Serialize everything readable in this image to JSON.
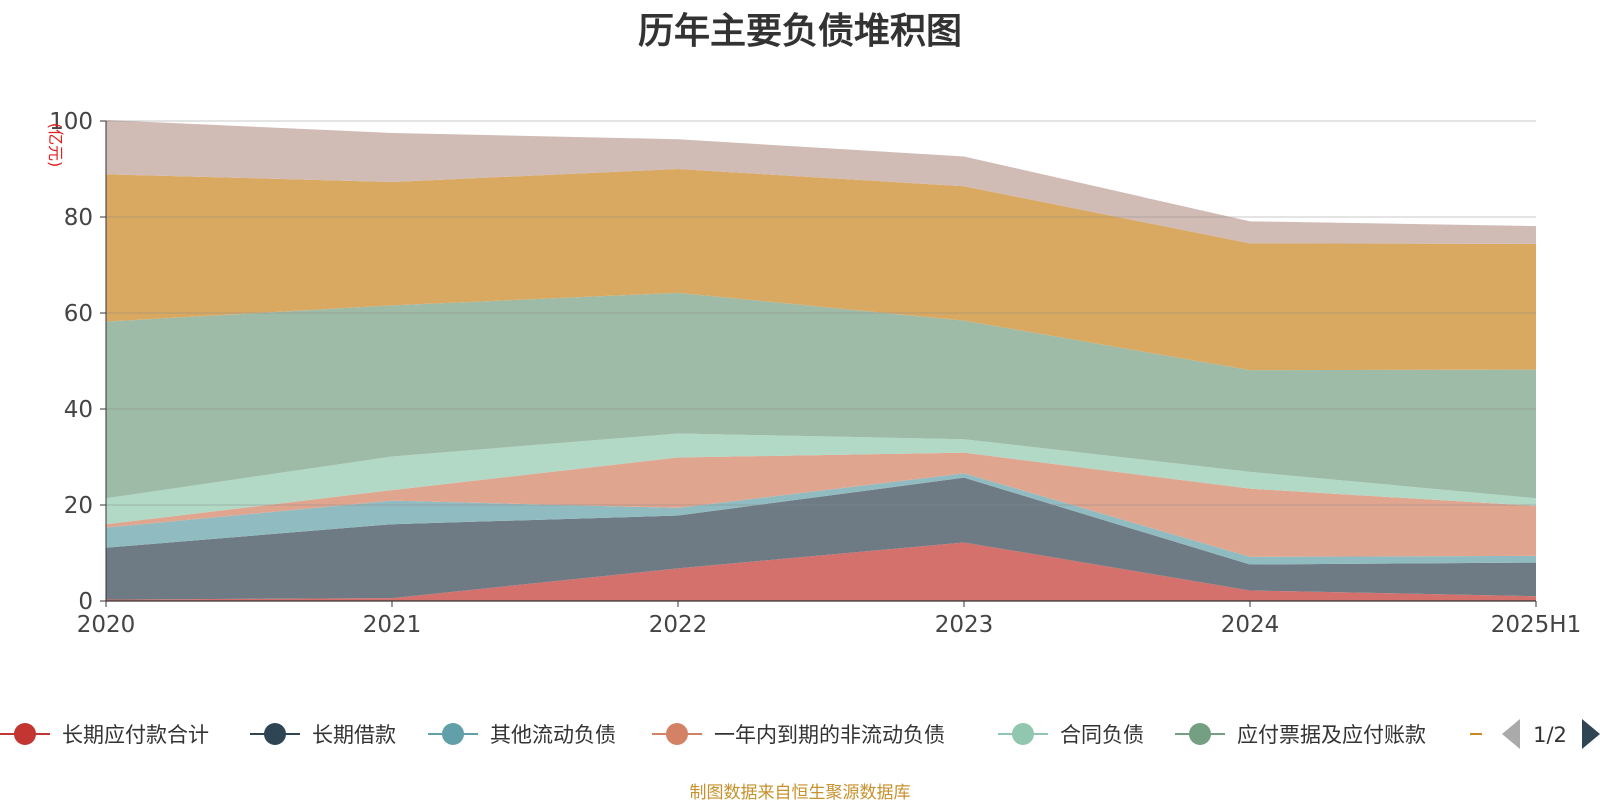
{
  "title": "历年主要负债堆积图",
  "source_note": "制图数据来自恒生聚源数据库",
  "legend_page": "1/2",
  "chart_data": {
    "type": "area",
    "stacked": true,
    "title": "历年主要负债堆积图",
    "unit": "(亿元)",
    "categories": [
      "2020",
      "2021",
      "2022",
      "2023",
      "2024",
      "2025H1"
    ],
    "ylim": [
      0,
      100
    ],
    "yticks": [
      0,
      20,
      40,
      60,
      80,
      100
    ],
    "grid": true,
    "legend_position": "bottom",
    "series": [
      {
        "name": "长期应付款合计",
        "color": "#c23531",
        "fill": "#d4716d",
        "values": [
          0.3,
          0.6,
          6.8,
          12.2,
          2.2,
          1.0
        ]
      },
      {
        "name": "长期借款",
        "color": "#2f4554",
        "fill": "#6e7b85",
        "values": [
          10.8,
          15.4,
          11.0,
          13.5,
          5.4,
          7.0
        ]
      },
      {
        "name": "其他流动负债",
        "color": "#61a0a8",
        "fill": "#90bcc1",
        "values": [
          4.2,
          4.9,
          1.6,
          0.9,
          1.6,
          1.4
        ]
      },
      {
        "name": "一年内到期的非流动负债",
        "color": "#d48265",
        "fill": "#e0a58f",
        "values": [
          0.7,
          2.2,
          10.5,
          4.3,
          14.2,
          10.4
        ]
      },
      {
        "name": "合同负债",
        "color": "#91c7ae",
        "fill": "#b2d8c6",
        "values": [
          5.4,
          7.0,
          5.0,
          2.8,
          3.5,
          1.6
        ]
      },
      {
        "name": "应付票据及应付账款",
        "color": "#749f83",
        "fill": "#9ebba8",
        "values": [
          36.8,
          31.5,
          29.3,
          24.7,
          21.2,
          26.8
        ]
      },
      {
        "name": "",
        "color": "#ca8622",
        "fill": "#d9a962",
        "values": [
          30.7,
          25.7,
          25.8,
          28.0,
          26.4,
          26.2
        ]
      },
      {
        "name": "",
        "color": "#bda29a",
        "fill": "#d0bbb5",
        "values": [
          11.3,
          10.2,
          6.2,
          6.2,
          4.6,
          3.7
        ]
      }
    ]
  }
}
